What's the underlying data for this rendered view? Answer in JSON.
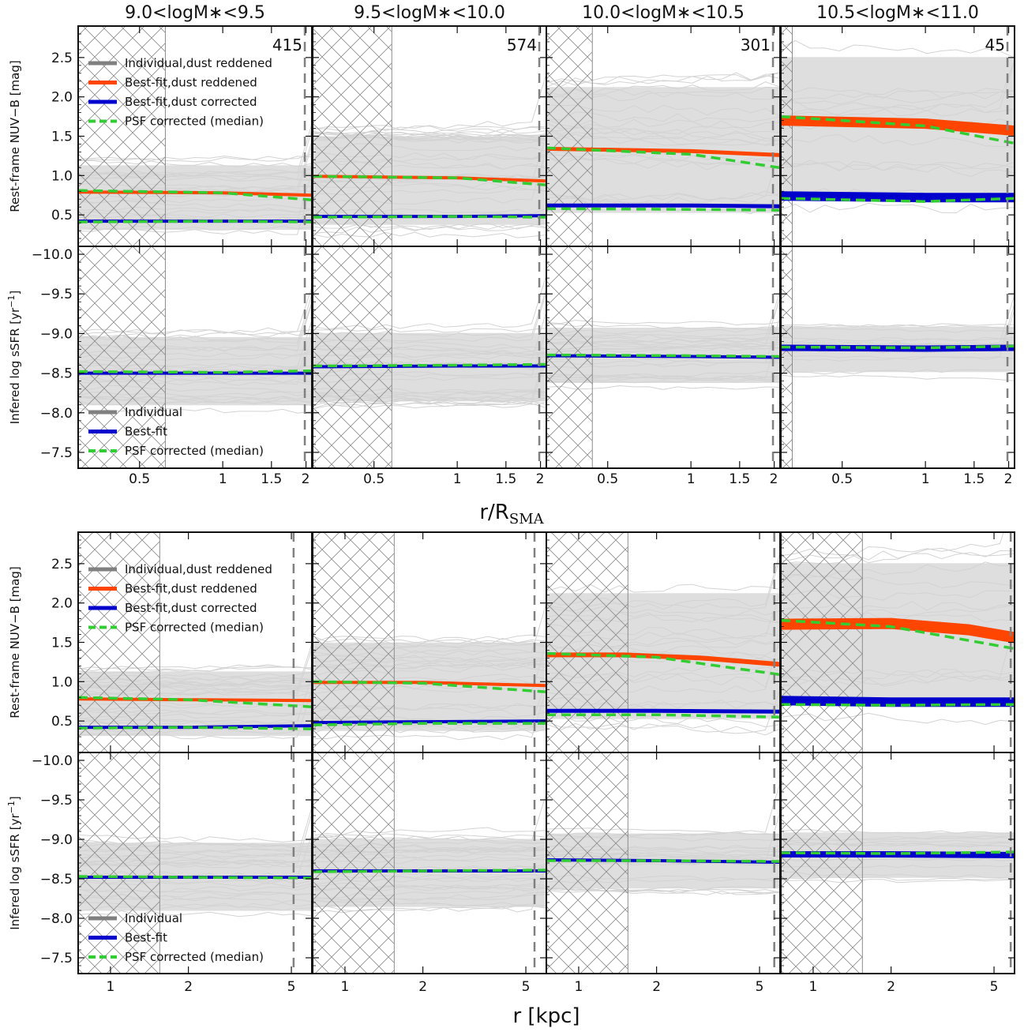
{
  "chart_data": {
    "type": "line",
    "column_titles": [
      "9.0<logM∗<9.5",
      "9.5<logM∗<10.0",
      "10.0<logM∗<10.5",
      "10.5<logM∗<11.0"
    ],
    "counts": [
      "415",
      "574",
      "301",
      "45"
    ],
    "x_labels": [
      "r/R",
      "SMA",
      "r [kpc]"
    ],
    "y_labels": [
      "Rest-frame NUV−B [mag]",
      "Infered log sSFR [yr",
      "−1",
      "]"
    ],
    "legend_color": [
      "Individual,dust reddened",
      "Best-fit,dust reddened",
      "Best-fit,dust corrected",
      "PSF corrected (median)"
    ],
    "legend_ssfr": [
      "Individual",
      "Best-fit",
      "PSF corrected (median)"
    ],
    "top_x": {
      "scale": "log",
      "range": [
        0.3,
        2.1
      ],
      "ticks": [
        0.5,
        1,
        1.5,
        2
      ],
      "tick_labels": [
        "0.5",
        "1",
        "1.5",
        "2"
      ]
    },
    "bottom_x": {
      "scale": "log",
      "range": [
        0.75,
        6.0
      ],
      "ticks": [
        1,
        2,
        5
      ],
      "tick_labels": [
        "1",
        "2",
        "5"
      ]
    },
    "color_y": {
      "range": [
        0.1,
        2.9
      ],
      "ticks": [
        0.5,
        1.0,
        1.5,
        2.0,
        2.5
      ],
      "tick_labels": [
        "0.5",
        "1.0",
        "1.5",
        "2.0",
        "2.5"
      ]
    },
    "ssfr_y": {
      "range": [
        -10.1,
        -7.3
      ],
      "inverted": true,
      "ticks": [
        -7.5,
        -8.0,
        -8.5,
        -9.0,
        -9.5,
        -10.0
      ],
      "tick_labels": [
        "−7.5",
        "−8.0",
        "−8.5",
        "−9.0",
        "−9.5",
        "−10.0"
      ]
    },
    "top_hatch_x": [
      0.62,
      0.58,
      0.44,
      0.33
    ],
    "top_dash_x": [
      1.98,
      1.98,
      1.98,
      1.98
    ],
    "bottom_hatch_x": [
      1.55,
      1.55,
      1.55,
      1.55
    ],
    "bottom_dash_x": [
      5.1,
      5.4,
      5.7,
      5.8
    ],
    "individual_band": {
      "color": [
        [
          0.22,
          1.22
        ],
        [
          0.25,
          1.62
        ],
        [
          0.35,
          2.3
        ],
        [
          0.55,
          2.7
        ]
      ],
      "ssfr": [
        [
          -8.0,
          -9.05
        ],
        [
          -8.05,
          -9.1
        ],
        [
          -8.3,
          -9.15
        ],
        [
          -8.45,
          -9.15
        ]
      ]
    },
    "top_series": [
      {
        "reddened": [
          [
            0.3,
            0.79
          ],
          [
            1.0,
            0.78
          ],
          [
            2.1,
            0.75
          ]
        ],
        "reddened_w": 4,
        "corrected": [
          [
            0.3,
            0.42
          ],
          [
            1.0,
            0.42
          ],
          [
            2.1,
            0.42
          ]
        ],
        "corrected_w": 4,
        "psf_red": [
          [
            0.3,
            0.81
          ],
          [
            1.0,
            0.78
          ],
          [
            2.1,
            0.69
          ]
        ],
        "psf_cor": [
          [
            0.3,
            0.41
          ],
          [
            1.0,
            0.42
          ],
          [
            2.1,
            0.41
          ]
        ],
        "ssfr_fit": [
          [
            0.3,
            -8.5
          ],
          [
            1.0,
            -8.5
          ],
          [
            2.1,
            -8.5
          ]
        ],
        "ssfr_psf": [
          [
            0.3,
            -8.52
          ],
          [
            1.0,
            -8.51
          ],
          [
            2.1,
            -8.53
          ]
        ]
      },
      {
        "reddened": [
          [
            0.3,
            0.99
          ],
          [
            1.0,
            0.97
          ],
          [
            2.1,
            0.93
          ]
        ],
        "reddened_w": 4,
        "corrected": [
          [
            0.3,
            0.48
          ],
          [
            1.0,
            0.48
          ],
          [
            2.1,
            0.49
          ]
        ],
        "corrected_w": 4,
        "psf_red": [
          [
            0.3,
            0.99
          ],
          [
            1.0,
            0.97
          ],
          [
            2.1,
            0.88
          ]
        ],
        "psf_cor": [
          [
            0.3,
            0.47
          ],
          [
            1.0,
            0.48
          ],
          [
            2.1,
            0.47
          ]
        ],
        "ssfr_fit": [
          [
            0.3,
            -8.58
          ],
          [
            1.0,
            -8.59
          ],
          [
            2.1,
            -8.59
          ]
        ],
        "ssfr_psf": [
          [
            0.3,
            -8.59
          ],
          [
            1.0,
            -8.6
          ],
          [
            2.1,
            -8.61
          ]
        ]
      },
      {
        "reddened": [
          [
            0.3,
            1.34
          ],
          [
            1.0,
            1.31
          ],
          [
            2.1,
            1.26
          ]
        ],
        "reddened_w": 5,
        "corrected": [
          [
            0.3,
            0.62
          ],
          [
            1.0,
            0.62
          ],
          [
            2.1,
            0.61
          ]
        ],
        "corrected_w": 5,
        "psf_red": [
          [
            0.3,
            1.35
          ],
          [
            1.0,
            1.27
          ],
          [
            2.1,
            1.1
          ]
        ],
        "psf_cor": [
          [
            0.3,
            0.58
          ],
          [
            1.0,
            0.57
          ],
          [
            2.1,
            0.56
          ]
        ],
        "ssfr_fit": [
          [
            0.3,
            -8.72
          ],
          [
            1.0,
            -8.71
          ],
          [
            2.1,
            -8.7
          ]
        ],
        "ssfr_psf": [
          [
            0.3,
            -8.73
          ],
          [
            1.0,
            -8.72
          ],
          [
            2.1,
            -8.71
          ]
        ]
      },
      {
        "reddened": [
          [
            0.3,
            1.7
          ],
          [
            1.0,
            1.66
          ],
          [
            2.1,
            1.57
          ]
        ],
        "reddened_w": 13,
        "corrected": [
          [
            0.3,
            0.74
          ],
          [
            1.0,
            0.72
          ],
          [
            2.1,
            0.72
          ]
        ],
        "corrected_w": 12,
        "psf_red": [
          [
            0.3,
            1.75
          ],
          [
            1.0,
            1.63
          ],
          [
            2.1,
            1.41
          ]
        ],
        "psf_cor": [
          [
            0.3,
            0.71
          ],
          [
            1.0,
            0.67
          ],
          [
            2.1,
            0.71
          ]
        ],
        "ssfr_fit": [
          [
            0.3,
            -8.82
          ],
          [
            1.0,
            -8.81
          ],
          [
            2.1,
            -8.82
          ]
        ],
        "ssfr_psf": [
          [
            0.3,
            -8.83
          ],
          [
            1.0,
            -8.82
          ],
          [
            2.1,
            -8.84
          ]
        ]
      }
    ],
    "bottom_series": [
      {
        "reddened": [
          [
            0.75,
            0.78
          ],
          [
            2.0,
            0.77
          ],
          [
            6.0,
            0.76
          ]
        ],
        "reddened_w": 4,
        "corrected": [
          [
            0.75,
            0.42
          ],
          [
            2.0,
            0.42
          ],
          [
            6.0,
            0.44
          ]
        ],
        "corrected_w": 4,
        "psf_red": [
          [
            0.75,
            0.8
          ],
          [
            2.0,
            0.77
          ],
          [
            6.0,
            0.68
          ]
        ],
        "psf_cor": [
          [
            0.75,
            0.41
          ],
          [
            2.0,
            0.42
          ],
          [
            6.0,
            0.4
          ]
        ],
        "ssfr_fit": [
          [
            0.75,
            -8.52
          ],
          [
            2.0,
            -8.52
          ],
          [
            6.0,
            -8.52
          ]
        ],
        "ssfr_psf": [
          [
            0.75,
            -8.53
          ],
          [
            2.0,
            -8.52
          ],
          [
            6.0,
            -8.51
          ]
        ]
      },
      {
        "reddened": [
          [
            0.75,
            0.99
          ],
          [
            2.0,
            0.99
          ],
          [
            6.0,
            0.95
          ]
        ],
        "reddened_w": 4,
        "corrected": [
          [
            0.75,
            0.48
          ],
          [
            2.0,
            0.49
          ],
          [
            6.0,
            0.5
          ]
        ],
        "corrected_w": 4,
        "psf_red": [
          [
            0.75,
            1.0
          ],
          [
            2.0,
            0.98
          ],
          [
            6.0,
            0.87
          ]
        ],
        "psf_cor": [
          [
            0.75,
            0.45
          ],
          [
            2.0,
            0.47
          ],
          [
            6.0,
            0.47
          ]
        ],
        "ssfr_fit": [
          [
            0.75,
            -8.6
          ],
          [
            2.0,
            -8.6
          ],
          [
            6.0,
            -8.6
          ]
        ],
        "ssfr_psf": [
          [
            0.75,
            -8.59
          ],
          [
            2.0,
            -8.6
          ],
          [
            6.0,
            -8.61
          ]
        ]
      },
      {
        "reddened": [
          [
            0.75,
            1.34
          ],
          [
            1.5,
            1.34
          ],
          [
            3.0,
            1.3
          ],
          [
            6.0,
            1.22
          ]
        ],
        "reddened_w": 6,
        "corrected": [
          [
            0.75,
            0.63
          ],
          [
            2.0,
            0.63
          ],
          [
            6.0,
            0.62
          ]
        ],
        "corrected_w": 5,
        "psf_red": [
          [
            0.75,
            1.36
          ],
          [
            2.0,
            1.31
          ],
          [
            6.0,
            1.09
          ]
        ],
        "psf_cor": [
          [
            0.75,
            0.58
          ],
          [
            2.0,
            0.58
          ],
          [
            6.0,
            0.55
          ]
        ],
        "ssfr_fit": [
          [
            0.75,
            -8.74
          ],
          [
            2.0,
            -8.73
          ],
          [
            6.0,
            -8.71
          ]
        ],
        "ssfr_psf": [
          [
            0.75,
            -8.73
          ],
          [
            2.0,
            -8.73
          ],
          [
            6.0,
            -8.72
          ]
        ]
      },
      {
        "reddened": [
          [
            0.75,
            1.73
          ],
          [
            2.0,
            1.74
          ],
          [
            4.0,
            1.66
          ],
          [
            6.0,
            1.56
          ]
        ],
        "reddened_w": 14,
        "corrected": [
          [
            0.75,
            0.76
          ],
          [
            2.0,
            0.74
          ],
          [
            6.0,
            0.74
          ]
        ],
        "corrected_w": 12,
        "psf_red": [
          [
            0.75,
            1.78
          ],
          [
            2.0,
            1.7
          ],
          [
            6.0,
            1.42
          ]
        ],
        "psf_cor": [
          [
            0.75,
            0.71
          ],
          [
            2.0,
            0.7
          ],
          [
            6.0,
            0.71
          ]
        ],
        "ssfr_fit": [
          [
            0.75,
            -8.81
          ],
          [
            2.0,
            -8.81
          ],
          [
            6.0,
            -8.8
          ]
        ],
        "ssfr_psf": [
          [
            0.75,
            -8.83
          ],
          [
            2.0,
            -8.82
          ],
          [
            6.0,
            -8.84
          ]
        ]
      }
    ],
    "colors": {
      "individual": "#d3d3d3",
      "legend_individual": "#808080",
      "reddened": "#ff4500",
      "corrected": "#0000cd",
      "psf": "#32cd32",
      "dashed_line": "#808080",
      "hatch": "#8c8c8c",
      "axis": "#111111"
    }
  }
}
